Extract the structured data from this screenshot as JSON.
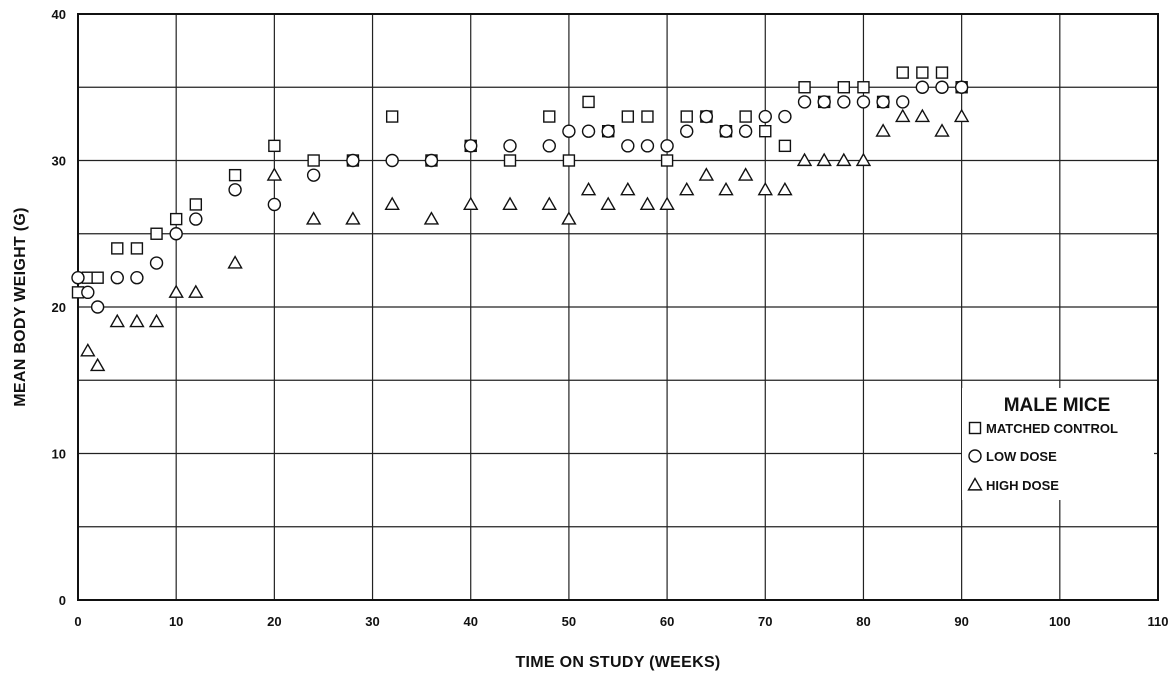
{
  "chart_data": {
    "type": "scatter",
    "title": "",
    "xlabel": "TIME ON STUDY (WEEKS)",
    "ylabel": "MEAN BODY WEIGHT (G)",
    "xlim": [
      0,
      110
    ],
    "ylim": [
      0,
      40
    ],
    "xticks": [
      0,
      10,
      20,
      30,
      40,
      50,
      60,
      70,
      80,
      90,
      100,
      110
    ],
    "yticks": [
      0,
      10,
      20,
      30,
      40
    ],
    "grid": true,
    "legend": {
      "title": "MALE MICE",
      "placement": "right"
    },
    "series": [
      {
        "name": "MATCHED CONTROL",
        "marker": "square",
        "x": [
          0,
          1,
          2,
          4,
          6,
          8,
          10,
          12,
          16,
          20,
          24,
          28,
          32,
          36,
          40,
          44,
          48,
          50,
          52,
          54,
          56,
          58,
          60,
          62,
          64,
          66,
          68,
          70,
          72,
          74,
          76,
          78,
          80,
          82,
          84,
          86,
          88,
          90
        ],
        "y": [
          21,
          22,
          22,
          24,
          24,
          25,
          26,
          27,
          29,
          31,
          30,
          30,
          33,
          30,
          31,
          30,
          33,
          30,
          34,
          32,
          33,
          33,
          30,
          33,
          33,
          32,
          33,
          32,
          31,
          35,
          34,
          35,
          35,
          34,
          36,
          36,
          36,
          35
        ]
      },
      {
        "name": "LOW DOSE",
        "marker": "circle",
        "x": [
          0,
          1,
          2,
          4,
          6,
          8,
          10,
          12,
          16,
          20,
          24,
          28,
          32,
          36,
          40,
          44,
          48,
          50,
          52,
          54,
          56,
          58,
          60,
          62,
          64,
          66,
          68,
          70,
          72,
          74,
          76,
          78,
          80,
          82,
          84,
          86,
          88,
          90
        ],
        "y": [
          22,
          21,
          20,
          22,
          22,
          23,
          25,
          26,
          28,
          27,
          29,
          30,
          30,
          30,
          31,
          31,
          31,
          32,
          32,
          32,
          31,
          31,
          31,
          32,
          33,
          32,
          32,
          33,
          33,
          34,
          34,
          34,
          34,
          34,
          34,
          35,
          35,
          35
        ]
      },
      {
        "name": "HIGH DOSE",
        "marker": "triangle",
        "x": [
          1,
          2,
          4,
          6,
          8,
          10,
          12,
          16,
          20,
          24,
          28,
          32,
          36,
          40,
          44,
          48,
          50,
          52,
          54,
          56,
          58,
          60,
          62,
          64,
          66,
          68,
          70,
          72,
          74,
          76,
          78,
          80,
          82,
          84,
          86,
          88,
          90
        ],
        "y": [
          17,
          16,
          19,
          19,
          19,
          21,
          21,
          23,
          29,
          26,
          26,
          27,
          26,
          27,
          27,
          27,
          26,
          28,
          27,
          28,
          27,
          27,
          28,
          29,
          28,
          29,
          28,
          28,
          30,
          30,
          30,
          30,
          32,
          33,
          33,
          32,
          33
        ]
      }
    ]
  }
}
